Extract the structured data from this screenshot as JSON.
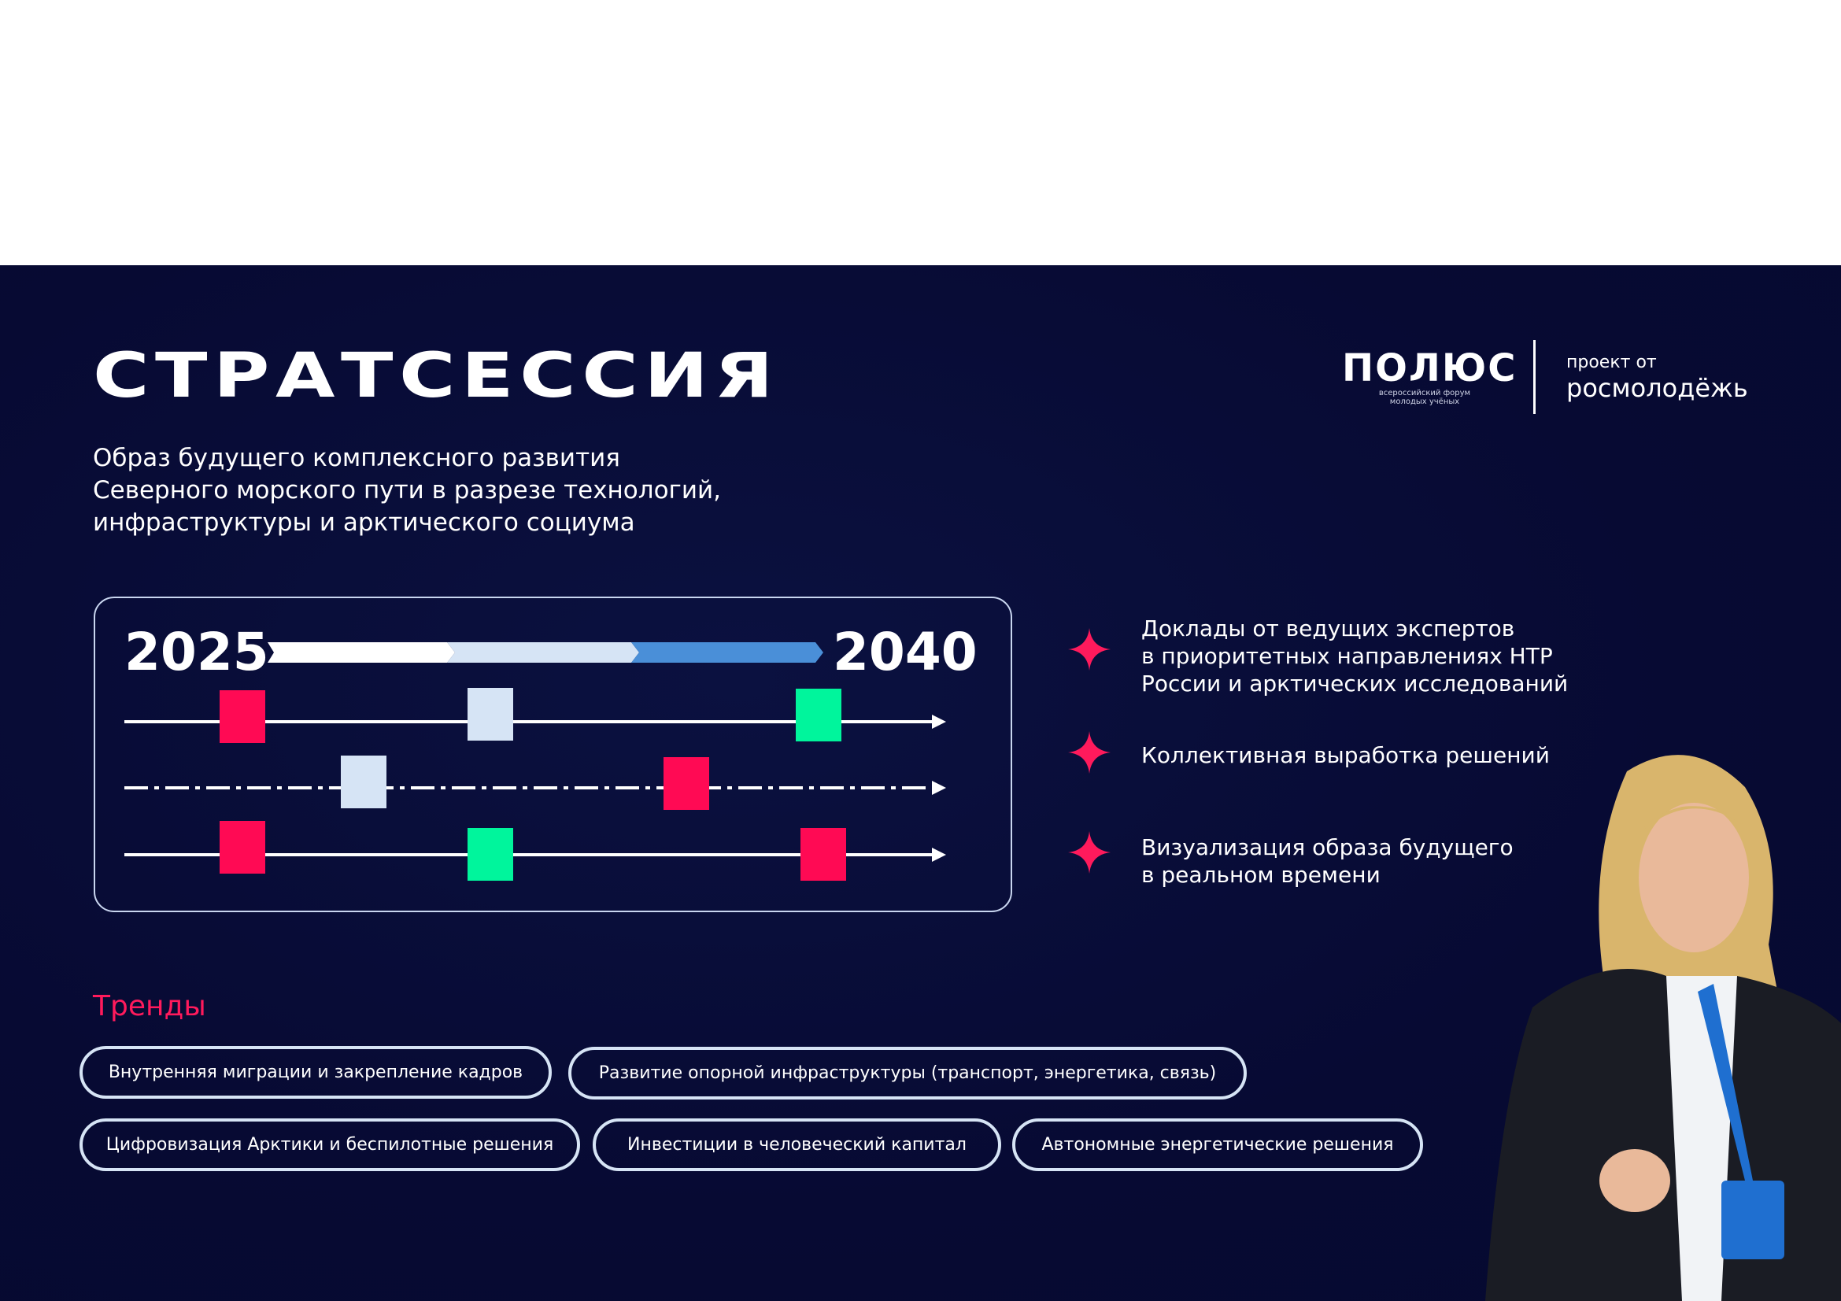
{
  "title": "СТРАТСЕССИЯ",
  "subtitle": [
    "Образ будущего комплексного развития",
    "Северного морского пути в разрезе технологий,",
    "инфраструктуры и арктического социума"
  ],
  "logo": {
    "name": "ПОЛЮС",
    "tagline": "всероссийский форум молодых учёных",
    "project_of": "проект от",
    "partner": "росмолодёжь"
  },
  "timeline": {
    "start_year": "2025",
    "end_year": "2040",
    "colors": {
      "pink": "#ff0a54",
      "light": "#d6e4f5",
      "green": "#00f59c",
      "blue": "#4a8fd8"
    }
  },
  "bullets": [
    {
      "icon": "star-icon",
      "lines": [
        "Доклады от ведущих экспертов",
        "в приоритетных направлениях НТР",
        "России и арктических исследований"
      ]
    },
    {
      "icon": "star-icon",
      "lines": [
        "Коллективная выработка решений"
      ]
    },
    {
      "icon": "star-icon",
      "lines": [
        "Визуализация образа будущего",
        "в  реальном времени"
      ]
    }
  ],
  "trends": {
    "heading": "Тренды",
    "items": [
      "Внутренняя миграции и закрепление кадров",
      "Развитие опорной инфраструктуры (транспорт, энергетика, связь)",
      "Цифровизация Арктики и беспилотные решения",
      "Инвестиции в человеческий капитал",
      "Автономные энергетические решения"
    ]
  },
  "colors": {
    "background": "#070a33",
    "accent": "#ff1a5c"
  }
}
